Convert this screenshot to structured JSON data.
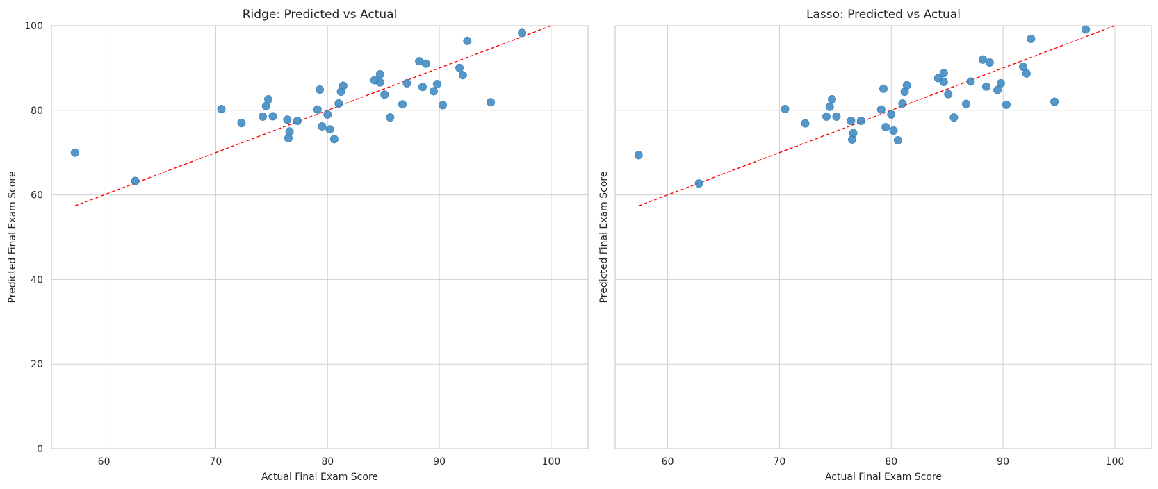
{
  "chart_data": [
    {
      "type": "scatter",
      "title": "Ridge: Predicted vs Actual",
      "xlabel": "Actual Final Exam Score",
      "ylabel": "Predicted Final Exam Score",
      "xlim": [
        55.3,
        103.3
      ],
      "ylim": [
        0,
        100
      ],
      "xticks": [
        60,
        70,
        80,
        90,
        100
      ],
      "yticks": [
        0,
        20,
        40,
        60,
        80,
        100
      ],
      "grid": true,
      "reference_line": {
        "style": "dashed",
        "color": "#ff0000",
        "from": [
          57.4,
          57.4
        ],
        "to": [
          100,
          100
        ]
      },
      "series": [
        {
          "color": "#3a85bd",
          "points": [
            [
              57.4,
              70.0
            ],
            [
              62.8,
              63.3
            ],
            [
              70.5,
              80.3
            ],
            [
              72.3,
              77.0
            ],
            [
              74.2,
              78.5
            ],
            [
              74.5,
              81.0
            ],
            [
              74.7,
              82.6
            ],
            [
              75.1,
              78.6
            ],
            [
              76.4,
              77.8
            ],
            [
              76.5,
              73.4
            ],
            [
              76.6,
              75.0
            ],
            [
              77.3,
              77.5
            ],
            [
              79.1,
              80.2
            ],
            [
              79.3,
              84.9
            ],
            [
              79.5,
              76.2
            ],
            [
              80.0,
              79.0
            ],
            [
              80.2,
              75.5
            ],
            [
              80.6,
              73.2
            ],
            [
              81.0,
              81.6
            ],
            [
              81.2,
              84.4
            ],
            [
              81.4,
              85.8
            ],
            [
              84.2,
              87.1
            ],
            [
              84.7,
              88.5
            ],
            [
              84.7,
              86.6
            ],
            [
              85.1,
              83.7
            ],
            [
              85.6,
              78.3
            ],
            [
              86.7,
              81.4
            ],
            [
              87.1,
              86.4
            ],
            [
              88.2,
              91.6
            ],
            [
              88.5,
              85.5
            ],
            [
              88.8,
              91.0
            ],
            [
              89.5,
              84.5
            ],
            [
              89.8,
              86.2
            ],
            [
              90.3,
              81.2
            ],
            [
              91.8,
              90.0
            ],
            [
              92.1,
              88.3
            ],
            [
              92.5,
              96.4
            ],
            [
              94.6,
              81.9
            ],
            [
              97.4,
              98.3
            ]
          ]
        }
      ]
    },
    {
      "type": "scatter",
      "title": "Lasso: Predicted vs Actual",
      "xlabel": "Actual Final Exam Score",
      "ylabel": "Predicted Final Exam Score",
      "xlim": [
        55.3,
        103.3
      ],
      "ylim": [
        0,
        100
      ],
      "xticks": [
        60,
        70,
        80,
        90,
        100
      ],
      "yticks": [
        0,
        20,
        40,
        60,
        80,
        100
      ],
      "grid": true,
      "reference_line": {
        "style": "dashed",
        "color": "#ff0000",
        "from": [
          57.4,
          57.4
        ],
        "to": [
          100,
          100
        ]
      },
      "series": [
        {
          "color": "#3a85bd",
          "points": [
            [
              57.4,
              69.4
            ],
            [
              62.8,
              62.7
            ],
            [
              70.5,
              80.3
            ],
            [
              72.3,
              76.9
            ],
            [
              74.2,
              78.5
            ],
            [
              74.5,
              80.8
            ],
            [
              74.7,
              82.6
            ],
            [
              75.1,
              78.5
            ],
            [
              76.4,
              77.5
            ],
            [
              76.5,
              73.1
            ],
            [
              76.6,
              74.6
            ],
            [
              77.3,
              77.5
            ],
            [
              79.1,
              80.2
            ],
            [
              79.3,
              85.1
            ],
            [
              79.5,
              76.0
            ],
            [
              80.0,
              79.0
            ],
            [
              80.2,
              75.2
            ],
            [
              80.6,
              72.9
            ],
            [
              81.0,
              81.6
            ],
            [
              81.2,
              84.4
            ],
            [
              81.4,
              85.9
            ],
            [
              84.2,
              87.6
            ],
            [
              84.7,
              88.8
            ],
            [
              84.7,
              86.7
            ],
            [
              85.1,
              83.8
            ],
            [
              85.6,
              78.3
            ],
            [
              86.7,
              81.5
            ],
            [
              87.1,
              86.8
            ],
            [
              88.2,
              92.0
            ],
            [
              88.5,
              85.6
            ],
            [
              88.8,
              91.3
            ],
            [
              89.5,
              84.8
            ],
            [
              89.8,
              86.4
            ],
            [
              90.3,
              81.3
            ],
            [
              91.8,
              90.3
            ],
            [
              92.1,
              88.7
            ],
            [
              92.5,
              96.9
            ],
            [
              94.6,
              82.0
            ],
            [
              97.4,
              99.1
            ]
          ]
        }
      ]
    }
  ]
}
